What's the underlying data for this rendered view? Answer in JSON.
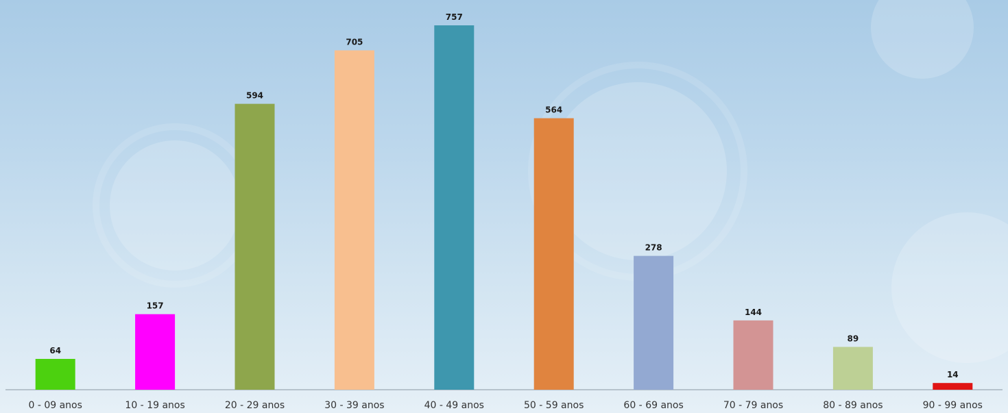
{
  "chart_data": {
    "type": "bar",
    "title": "",
    "xlabel": "",
    "ylabel": "",
    "categories": [
      "0 - 09 anos",
      "10 - 19 anos",
      "20 - 29 anos",
      "30 - 39 anos",
      "40 - 49 anos",
      "50 - 59 anos",
      "60 - 69 anos",
      "70 - 79 anos",
      "80 - 89 anos",
      "90 - 99 anos"
    ],
    "values": [
      64,
      157,
      594,
      705,
      757,
      564,
      278,
      144,
      89,
      14
    ],
    "colors": [
      "#4cd10f",
      "#ff00ff",
      "#8ea64c",
      "#f8bf8f",
      "#3e97ae",
      "#e0843f",
      "#93a9d2",
      "#d39494",
      "#bdd095",
      "#e01414"
    ],
    "ylim": [
      0,
      757
    ],
    "grid": false,
    "legend": "none",
    "data_labels": true
  }
}
